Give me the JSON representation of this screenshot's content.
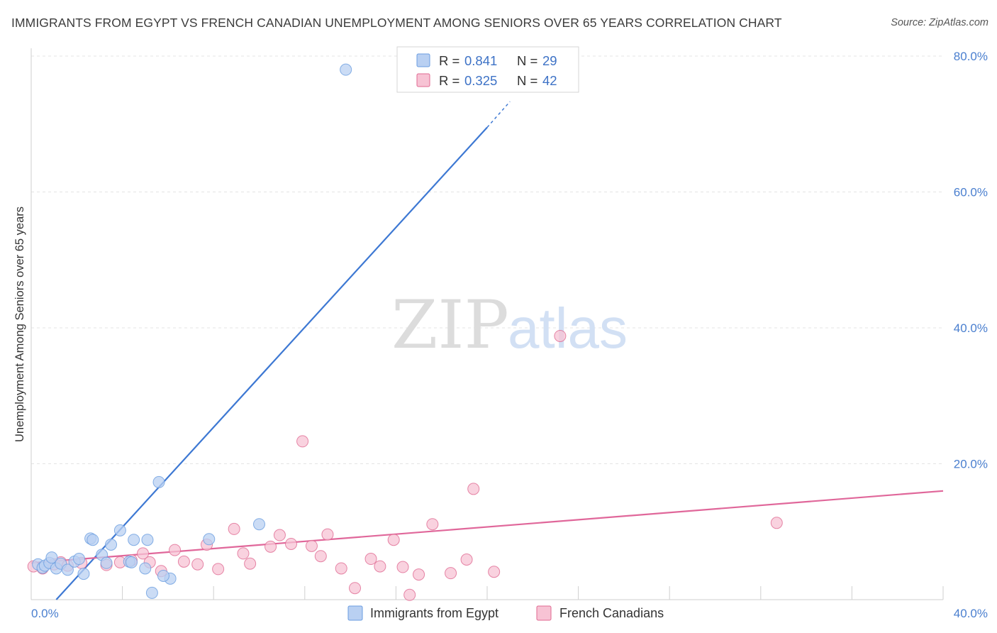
{
  "header": {
    "title": "IMMIGRANTS FROM EGYPT VS FRENCH CANADIAN UNEMPLOYMENT AMONG SENIORS OVER 65 YEARS CORRELATION CHART",
    "source": "Source: ZipAtlas.com"
  },
  "watermark": {
    "zip": "ZIP",
    "atlas": "atlas"
  },
  "chart_data": {
    "type": "scatter",
    "title": "IMMIGRANTS FROM EGYPT VS FRENCH CANADIAN UNEMPLOYMENT AMONG SENIORS OVER 65 YEARS CORRELATION CHART",
    "xlabel": "",
    "ylabel": "Unemployment Among Seniors over 65 years",
    "xlim": [
      0,
      40
    ],
    "ylim": [
      0,
      80
    ],
    "x_ticks": [
      0,
      40
    ],
    "x_tick_labels": [
      "0.0%",
      "40.0%"
    ],
    "y_ticks": [
      20,
      40,
      60,
      80
    ],
    "y_tick_labels": [
      "20.0%",
      "40.0%",
      "60.0%",
      "80.0%"
    ],
    "grid": true,
    "legend_placement": "top-center",
    "series": [
      {
        "name": "Immigrants from Egypt",
        "color": "#6a9de0",
        "fill": "#b9d0f2",
        "stats": {
          "r_label": "R =",
          "r": "0.841",
          "n_label": "N =",
          "n": "29"
        },
        "trend": {
          "x": [
            1.1,
            20.0
          ],
          "y": [
            0.0,
            69.5
          ]
        },
        "trend_ext": {
          "x": [
            20.0,
            21.0
          ],
          "y": [
            69.5,
            73.3
          ]
        },
        "points": [
          [
            0.3,
            5.2
          ],
          [
            0.5,
            4.7
          ],
          [
            0.6,
            5.0
          ],
          [
            0.8,
            5.4
          ],
          [
            0.9,
            6.2
          ],
          [
            1.1,
            4.6
          ],
          [
            1.3,
            5.3
          ],
          [
            1.6,
            4.4
          ],
          [
            1.9,
            5.6
          ],
          [
            2.1,
            6.0
          ],
          [
            2.3,
            3.8
          ],
          [
            2.6,
            9.0
          ],
          [
            2.7,
            8.8
          ],
          [
            3.1,
            6.6
          ],
          [
            3.3,
            5.4
          ],
          [
            3.5,
            8.1
          ],
          [
            3.9,
            10.2
          ],
          [
            4.3,
            5.6
          ],
          [
            4.4,
            5.5
          ],
          [
            4.5,
            8.8
          ],
          [
            5.0,
            4.6
          ],
          [
            5.1,
            8.8
          ],
          [
            5.3,
            1.0
          ],
          [
            5.6,
            17.3
          ],
          [
            6.1,
            3.1
          ],
          [
            7.8,
            8.9
          ],
          [
            10.0,
            11.1
          ],
          [
            13.8,
            78.0
          ],
          [
            5.8,
            3.5
          ]
        ]
      },
      {
        "name": "French Canadians",
        "color": "#e06a92",
        "fill": "#f7c3d4",
        "stats": {
          "r_label": "R =",
          "r": "0.325",
          "n_label": "N =",
          "n": "42"
        },
        "trend": {
          "x": [
            0.0,
            40.0
          ],
          "y": [
            5.4,
            16.0
          ]
        },
        "points": [
          [
            0.1,
            4.9
          ],
          [
            0.5,
            4.6
          ],
          [
            1.0,
            5.2
          ],
          [
            1.3,
            5.5
          ],
          [
            1.6,
            5.0
          ],
          [
            2.2,
            5.4
          ],
          [
            3.3,
            5.1
          ],
          [
            3.9,
            5.5
          ],
          [
            4.4,
            5.8
          ],
          [
            4.9,
            6.8
          ],
          [
            5.2,
            5.5
          ],
          [
            5.7,
            4.2
          ],
          [
            6.3,
            7.3
          ],
          [
            6.7,
            5.6
          ],
          [
            7.3,
            5.2
          ],
          [
            7.7,
            8.1
          ],
          [
            8.2,
            4.5
          ],
          [
            8.9,
            10.4
          ],
          [
            9.3,
            6.8
          ],
          [
            9.6,
            5.3
          ],
          [
            10.5,
            7.8
          ],
          [
            10.9,
            9.5
          ],
          [
            11.4,
            8.2
          ],
          [
            11.9,
            23.3
          ],
          [
            12.3,
            7.9
          ],
          [
            12.7,
            6.4
          ],
          [
            13.0,
            9.6
          ],
          [
            13.6,
            4.6
          ],
          [
            14.2,
            1.7
          ],
          [
            14.9,
            6.0
          ],
          [
            15.3,
            4.9
          ],
          [
            15.9,
            8.8
          ],
          [
            16.3,
            4.8
          ],
          [
            16.6,
            0.7
          ],
          [
            17.0,
            3.7
          ],
          [
            17.6,
            11.1
          ],
          [
            18.4,
            3.9
          ],
          [
            19.1,
            5.9
          ],
          [
            19.4,
            16.3
          ],
          [
            20.3,
            4.1
          ],
          [
            23.2,
            38.8
          ],
          [
            32.7,
            11.3
          ]
        ]
      }
    ]
  }
}
